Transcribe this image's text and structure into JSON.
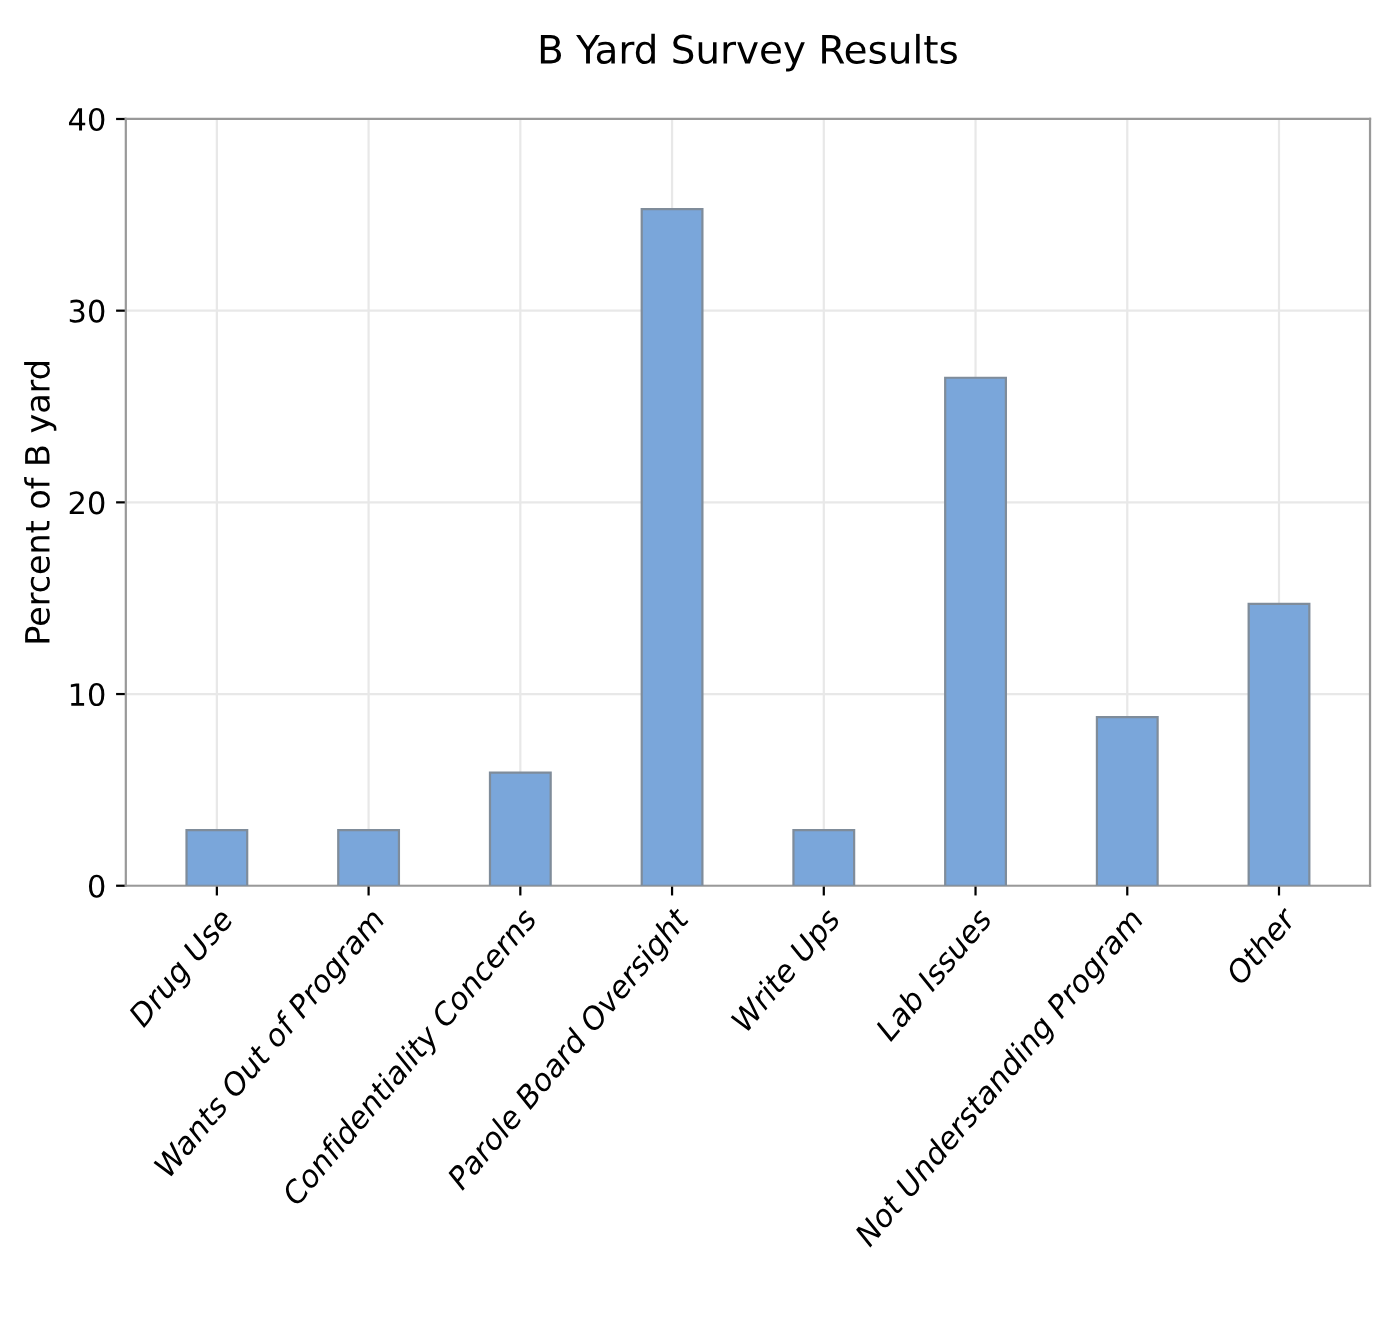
{
  "chart_data": {
    "type": "bar",
    "title": "B Yard Survey Results",
    "ylabel": "Percent of B yard",
    "categories": [
      "Drug Use",
      "Wants Out of Program",
      "Confidentiality Concerns",
      "Parole Board Oversight",
      "Write Ups",
      "Lab Issues",
      "Not Understanding Program",
      "Other"
    ],
    "values": [
      2.9,
      2.9,
      5.9,
      35.3,
      2.9,
      26.5,
      8.8,
      14.7
    ],
    "color": "#7aa6da",
    "ylim": [
      0,
      40
    ],
    "yticks": [
      0,
      10,
      20,
      30,
      40
    ],
    "grid": true
  }
}
